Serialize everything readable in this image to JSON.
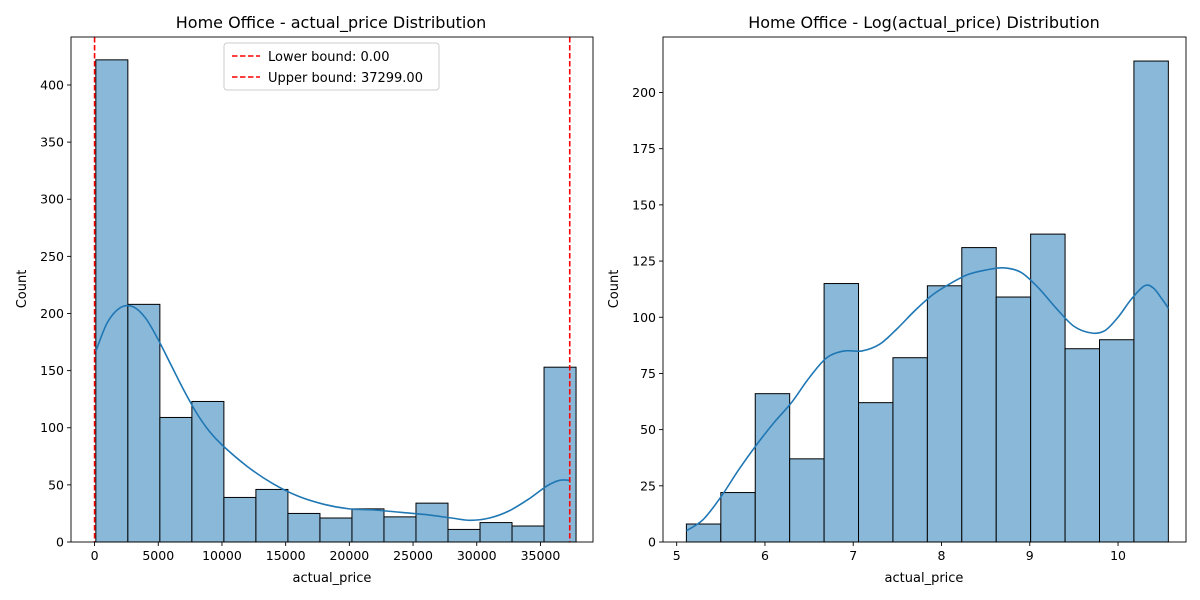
{
  "chart_data": [
    {
      "type": "bar",
      "title": "Home Office - actual_price Distribution",
      "xlabel": "actual_price",
      "ylabel": "Count",
      "xlim": [
        -1850,
        39125
      ],
      "ylim": [
        0,
        442
      ],
      "xticks": [
        0,
        5000,
        10000,
        15000,
        20000,
        25000,
        30000,
        35000
      ],
      "yticks": [
        0,
        50,
        100,
        150,
        200,
        250,
        300,
        350,
        400
      ],
      "bin_edges": [
        100,
        2613,
        5126,
        7639,
        10152,
        12665,
        15178,
        17691,
        20204,
        22717,
        25230,
        27743,
        30256,
        32769,
        35282,
        37795
      ],
      "values": [
        422,
        208,
        109,
        123,
        39,
        46,
        25,
        21,
        29,
        22,
        34,
        11,
        17,
        14,
        153
      ],
      "kde": {
        "x": [
          100,
          1000,
          2000,
          3000,
          4000,
          5000,
          6000,
          7000,
          8000,
          9000,
          10000,
          12000,
          14000,
          16000,
          18000,
          20000,
          22000,
          24000,
          26000,
          28000,
          29500,
          31000,
          32500,
          34000,
          35500,
          36500,
          37300
        ],
        "y": [
          167,
          192,
          205,
          206,
          196,
          177,
          155,
          133,
          113,
          97,
          85,
          66,
          51,
          40,
          33,
          29,
          28,
          26,
          24,
          21,
          19,
          21,
          27,
          37,
          49,
          54,
          54
        ]
      },
      "vlines": [
        {
          "label": "Lower bound: 0.00",
          "x": 0,
          "color": "#ff0000",
          "style": "dashed"
        },
        {
          "label": "Upper bound: 37299.00",
          "x": 37299,
          "color": "#ff0000",
          "style": "dashed"
        }
      ],
      "legend_position": "top-center",
      "colors": {
        "bar_fill": "#8ab8d9",
        "bar_edge": "#000000",
        "kde": "#1f77b4"
      }
    },
    {
      "type": "bar",
      "title": "Home Office - Log(actual_price) Distribution",
      "xlabel": "actual_price",
      "ylabel": "Count",
      "xlim": [
        4.845,
        10.77
      ],
      "ylim": [
        0,
        224.7
      ],
      "xticks": [
        5,
        6,
        7,
        8,
        9,
        10
      ],
      "yticks": [
        0,
        25,
        50,
        75,
        100,
        125,
        150,
        175,
        200
      ],
      "bin_edges": [
        5.11,
        5.5,
        5.89,
        6.28,
        6.67,
        7.06,
        7.45,
        7.84,
        8.23,
        8.62,
        9.01,
        9.4,
        9.79,
        10.18,
        10.57
      ],
      "values": [
        8,
        22,
        66,
        37,
        115,
        62,
        82,
        114,
        131,
        109,
        137,
        86,
        90,
        214
      ],
      "kde": {
        "x": [
          5.11,
          5.3,
          5.5,
          5.7,
          5.9,
          6.1,
          6.3,
          6.5,
          6.7,
          6.9,
          7.1,
          7.3,
          7.5,
          7.7,
          7.9,
          8.1,
          8.3,
          8.5,
          8.7,
          8.9,
          9.1,
          9.3,
          9.5,
          9.7,
          9.85,
          10.0,
          10.15,
          10.3,
          10.4,
          10.5,
          10.57
        ],
        "y": [
          5,
          10,
          20,
          32,
          43,
          53,
          62,
          73,
          82,
          85,
          85,
          88,
          95,
          103,
          110,
          115,
          119,
          121,
          122,
          120,
          113,
          104,
          96,
          93,
          94,
          100,
          108,
          114,
          113,
          108,
          104
        ]
      },
      "colors": {
        "bar_fill": "#8ab8d9",
        "bar_edge": "#000000",
        "kde": "#1f77b4"
      }
    }
  ]
}
